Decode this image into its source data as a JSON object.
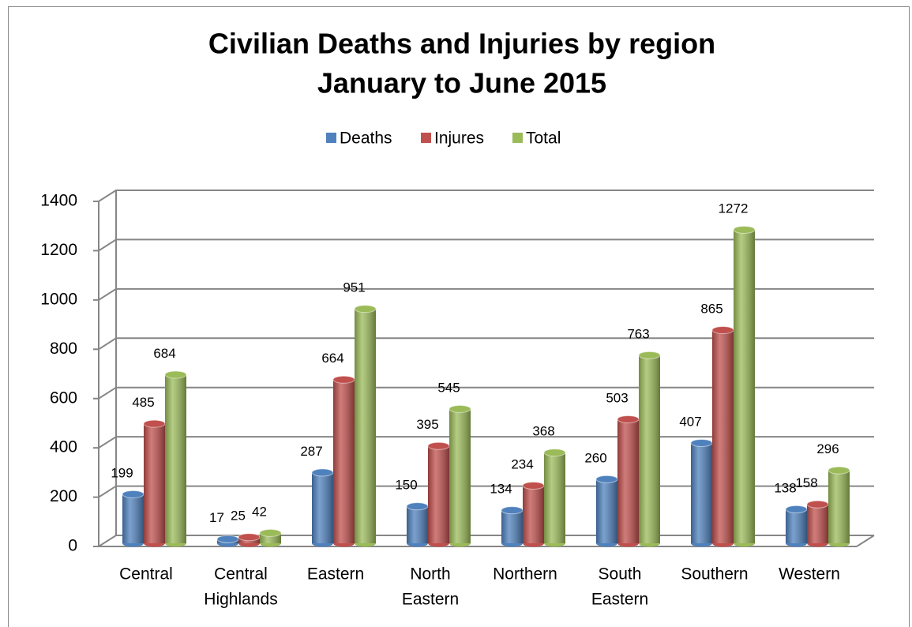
{
  "chart_data": {
    "type": "bar3d",
    "title": [
      "Civilian Deaths and Injuries by region",
      "January to June 2015"
    ],
    "categories": [
      [
        "Central"
      ],
      [
        "Central",
        "Highlands"
      ],
      [
        "Eastern"
      ],
      [
        "North",
        "Eastern"
      ],
      [
        "Northern"
      ],
      [
        "South",
        "Eastern"
      ],
      [
        "Southern"
      ],
      [
        "Western"
      ]
    ],
    "series": [
      {
        "name": "Deaths",
        "color": "#4f81bd",
        "values": [
          199,
          17,
          287,
          150,
          134,
          260,
          407,
          138
        ]
      },
      {
        "name": "Injures",
        "color": "#c0504d",
        "values": [
          485,
          25,
          664,
          395,
          234,
          503,
          865,
          158
        ]
      },
      {
        "name": "Total",
        "color": "#9bbb59",
        "values": [
          684,
          42,
          951,
          545,
          368,
          763,
          1272,
          296
        ]
      }
    ],
    "ylim": [
      0,
      1400
    ],
    "yticks": [
      0,
      200,
      400,
      600,
      800,
      1000,
      1200,
      1400
    ],
    "grid": true,
    "legend": "top"
  }
}
